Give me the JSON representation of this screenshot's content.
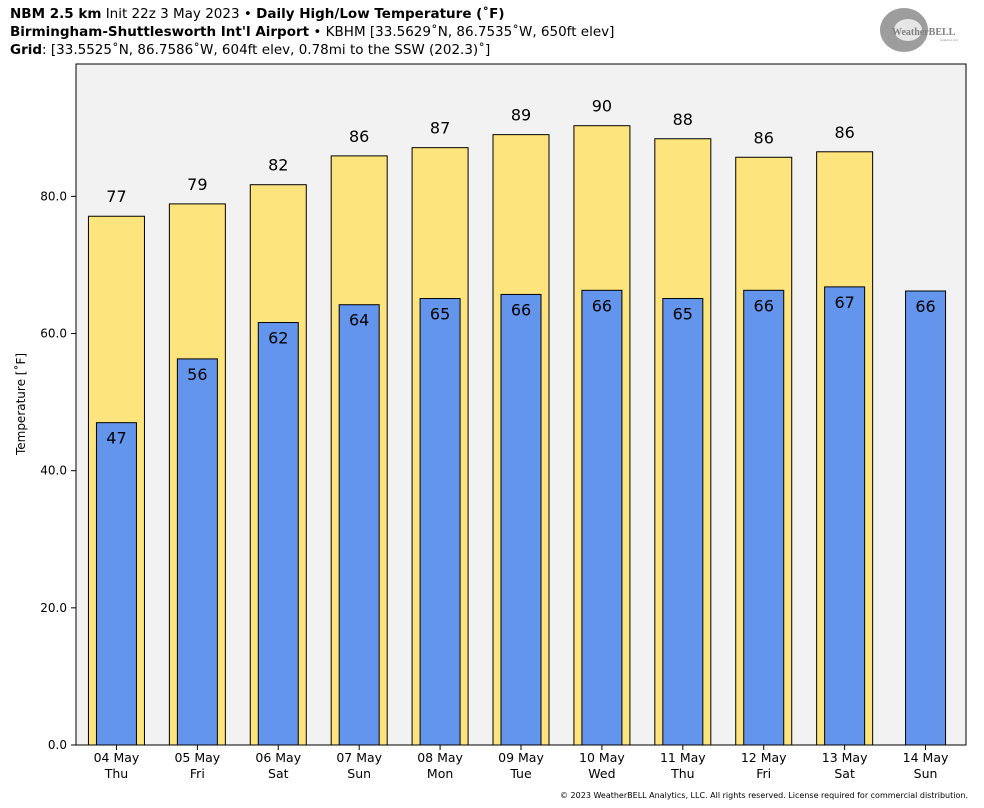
{
  "header": {
    "line1_model": "NBM 2.5 km",
    "line1_init": "Init 22z 3 May 2023",
    "line1_sep": "•",
    "line1_product": "Daily High/Low Temperature (˚F)",
    "line2_station": "Birmingham-Shuttlesworth Int'l Airport",
    "line2_sep": "•",
    "line2_details": "KBHM [33.5629˚N, 86.7535˚W, 650ft elev]",
    "line3_label": "Grid",
    "line3_details": ": [33.5525˚N, 86.7586˚W, 604ft elev, 0.78mi to the SSW (202.3)˚]"
  },
  "logo": {
    "text_main": "WeatherBELL",
    "text_sub": "Analytics LLC"
  },
  "footer": "© 2023 WeatherBELL Analytics, LLC. All rights reserved. License required for commercial distribution.",
  "colors": {
    "high": "#fee47c",
    "low": "#6495ed",
    "plot_bg": "#f2f2f2"
  },
  "chart_data": {
    "type": "bar",
    "ylabel": "Temperature [˚F]",
    "ylim": [
      0,
      99.3
    ],
    "yticks": [
      "0.0",
      "20.0",
      "40.0",
      "60.0",
      "80.0"
    ],
    "grid": false,
    "categories": [
      [
        "04 May",
        "Thu"
      ],
      [
        "05 May",
        "Fri"
      ],
      [
        "06 May",
        "Sat"
      ],
      [
        "07 May",
        "Sun"
      ],
      [
        "08 May",
        "Mon"
      ],
      [
        "09 May",
        "Tue"
      ],
      [
        "10 May",
        "Wed"
      ],
      [
        "11 May",
        "Thu"
      ],
      [
        "12 May",
        "Fri"
      ],
      [
        "13 May",
        "Sat"
      ],
      [
        "14 May",
        "Sun"
      ]
    ],
    "series": [
      {
        "key": "high",
        "values": [
          77.1,
          78.9,
          81.7,
          85.9,
          87.1,
          89.0,
          90.3,
          88.4,
          85.7,
          86.5,
          null
        ],
        "labels": [
          "77",
          "79",
          "82",
          "86",
          "87",
          "89",
          "90",
          "88",
          "86",
          "86",
          ""
        ]
      },
      {
        "key": "low",
        "values": [
          47.0,
          56.3,
          61.6,
          64.2,
          65.1,
          65.7,
          66.3,
          65.1,
          66.3,
          66.8,
          66.2
        ],
        "labels": [
          "47",
          "56",
          "62",
          "64",
          "65",
          "66",
          "66",
          "65",
          "66",
          "67",
          "66"
        ]
      }
    ]
  }
}
